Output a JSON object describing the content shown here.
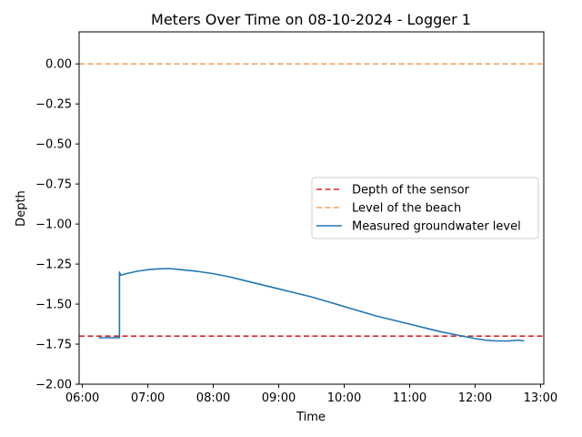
{
  "chart_data": {
    "type": "line",
    "title": "Meters Over Time on 08-10-2024 - Logger 1",
    "xlabel": "Time",
    "ylabel": "Depth",
    "xlim": [
      "05:57",
      "13:03"
    ],
    "ylim": [
      -2.0,
      0.2
    ],
    "x_ticks": [
      "06:00",
      "07:00",
      "08:00",
      "09:00",
      "10:00",
      "11:00",
      "12:00",
      "13:00"
    ],
    "y_ticks": [
      "0.00",
      "−0.25",
      "−0.50",
      "−0.75",
      "−1.00",
      "−1.25",
      "−1.50",
      "−1.75",
      "−2.00"
    ],
    "y_tick_values": [
      0.0,
      -0.25,
      -0.5,
      -0.75,
      -1.0,
      -1.25,
      -1.5,
      -1.75,
      -2.0
    ],
    "grid": false,
    "legend_position": "center-right",
    "series": [
      {
        "name": "Depth of the sensor",
        "kind": "hline",
        "y": -1.7,
        "color": "#d62728",
        "style": "dashed"
      },
      {
        "name": "Level of the beach",
        "kind": "hline",
        "y": 0.0,
        "color": "#f4a460",
        "style": "dashed"
      },
      {
        "name": "Measured groundwater level",
        "kind": "line",
        "color": "#1f77b4",
        "style": "solid",
        "x": [
          "06:15",
          "06:30",
          "06:34",
          "06:34",
          "06:35",
          "06:40",
          "06:50",
          "07:00",
          "07:10",
          "07:20",
          "07:30",
          "07:45",
          "08:00",
          "08:15",
          "08:30",
          "08:45",
          "09:00",
          "09:15",
          "09:30",
          "09:45",
          "10:00",
          "10:15",
          "10:30",
          "10:45",
          "11:00",
          "11:15",
          "11:30",
          "11:45",
          "12:00",
          "12:10",
          "12:20",
          "12:30",
          "12:40",
          "12:45"
        ],
        "y": [
          -1.71,
          -1.71,
          -1.71,
          -1.3,
          -1.32,
          -1.31,
          -1.295,
          -1.285,
          -1.28,
          -1.278,
          -1.285,
          -1.295,
          -1.31,
          -1.33,
          -1.355,
          -1.38,
          -1.405,
          -1.43,
          -1.455,
          -1.485,
          -1.515,
          -1.545,
          -1.575,
          -1.6,
          -1.625,
          -1.65,
          -1.675,
          -1.695,
          -1.715,
          -1.725,
          -1.73,
          -1.73,
          -1.725,
          -1.73
        ]
      }
    ]
  }
}
